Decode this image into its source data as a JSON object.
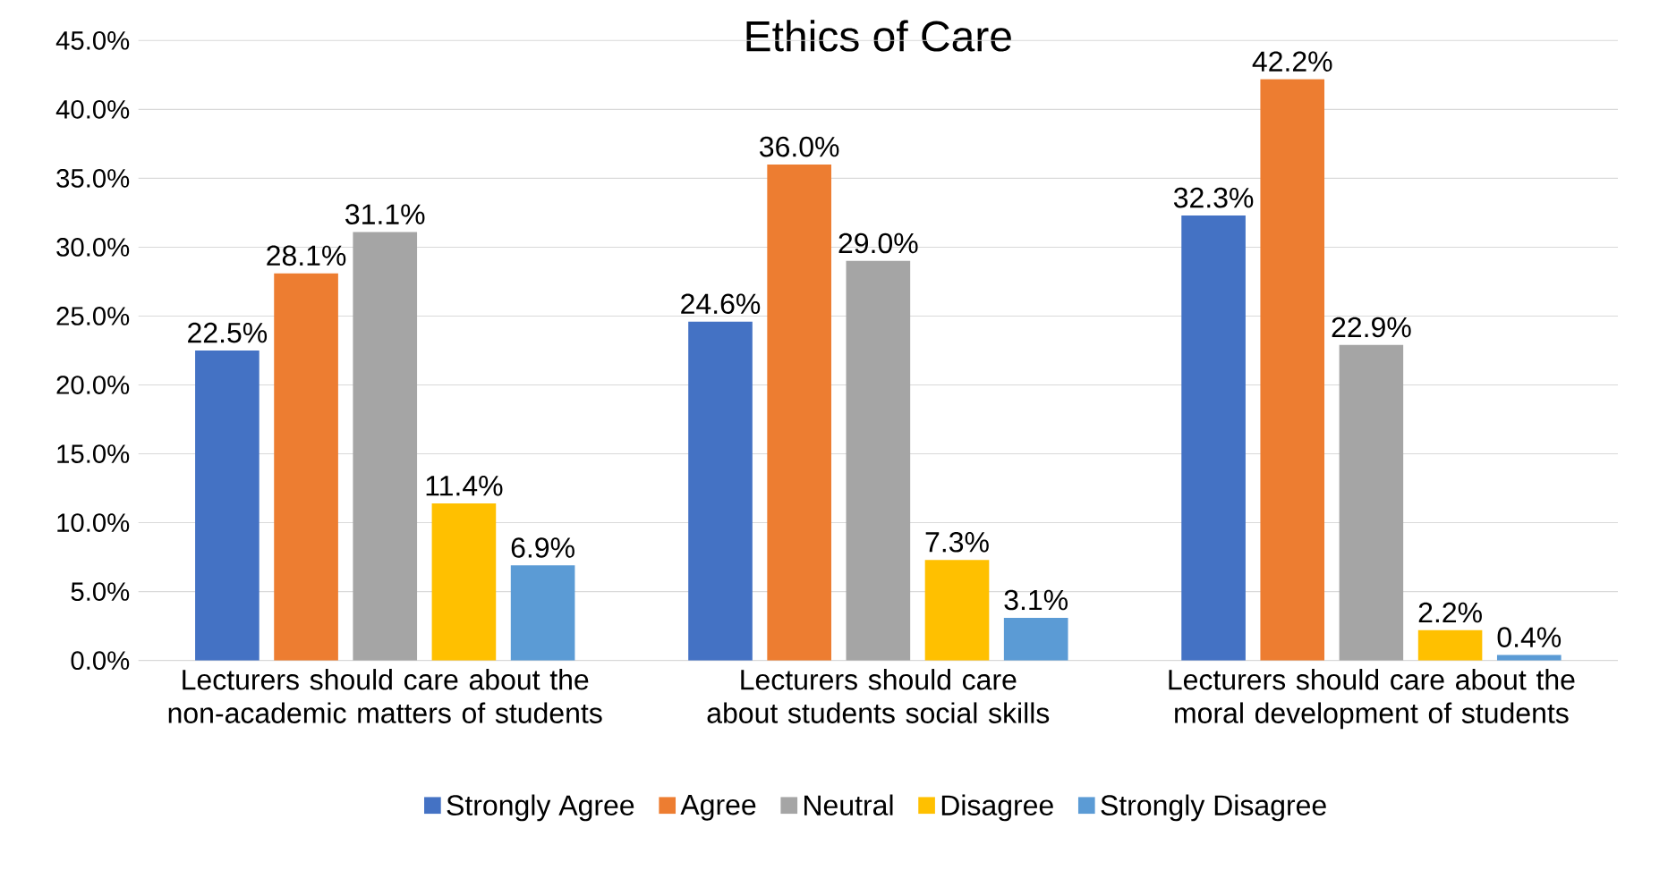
{
  "chart_data": {
    "type": "bar",
    "title": "Ethics of Care",
    "categories": [
      "Lecturers should care about the non-academic matters of students",
      "Lecturers should care about students social skills",
      "Lecturers should care about the moral development of students"
    ],
    "series": [
      {
        "name": "Strongly Agree",
        "color": "#4472c4",
        "values": [
          22.5,
          24.6,
          32.3
        ],
        "value_labels": [
          "22.5%",
          "24.6%",
          "32.3%"
        ]
      },
      {
        "name": "Agree",
        "color": "#ed7d31",
        "values": [
          28.1,
          36.0,
          42.2
        ],
        "value_labels": [
          "28.1%",
          "36.0%",
          "42.2%"
        ]
      },
      {
        "name": "Neutral",
        "color": "#a5a5a5",
        "values": [
          31.1,
          29.0,
          22.9
        ],
        "value_labels": [
          "31.1%",
          "29.0%",
          "22.9%"
        ]
      },
      {
        "name": "Disagree",
        "color": "#ffc000",
        "values": [
          11.4,
          7.3,
          2.2
        ],
        "value_labels": [
          "11.4%",
          "7.3%",
          "2.2%"
        ]
      },
      {
        "name": "Strongly Disagree",
        "color": "#5b9bd5",
        "values": [
          6.9,
          3.1,
          0.4
        ],
        "value_labels": [
          "6.9%",
          "3.1%",
          "0.4%"
        ]
      }
    ],
    "ylim": [
      0,
      45
    ],
    "yticks": [
      {
        "value": 0,
        "label": "0.0%"
      },
      {
        "value": 5,
        "label": "5.0%"
      },
      {
        "value": 10,
        "label": "10.0%"
      },
      {
        "value": 15,
        "label": "15.0%"
      },
      {
        "value": 20,
        "label": "20.0%"
      },
      {
        "value": 25,
        "label": "25.0%"
      },
      {
        "value": 30,
        "label": "30.0%"
      },
      {
        "value": 35,
        "label": "35.0%"
      },
      {
        "value": 40,
        "label": "40.0%"
      },
      {
        "value": 45,
        "label": "45.0%"
      }
    ],
    "grid": "y",
    "legend": "bottom"
  }
}
